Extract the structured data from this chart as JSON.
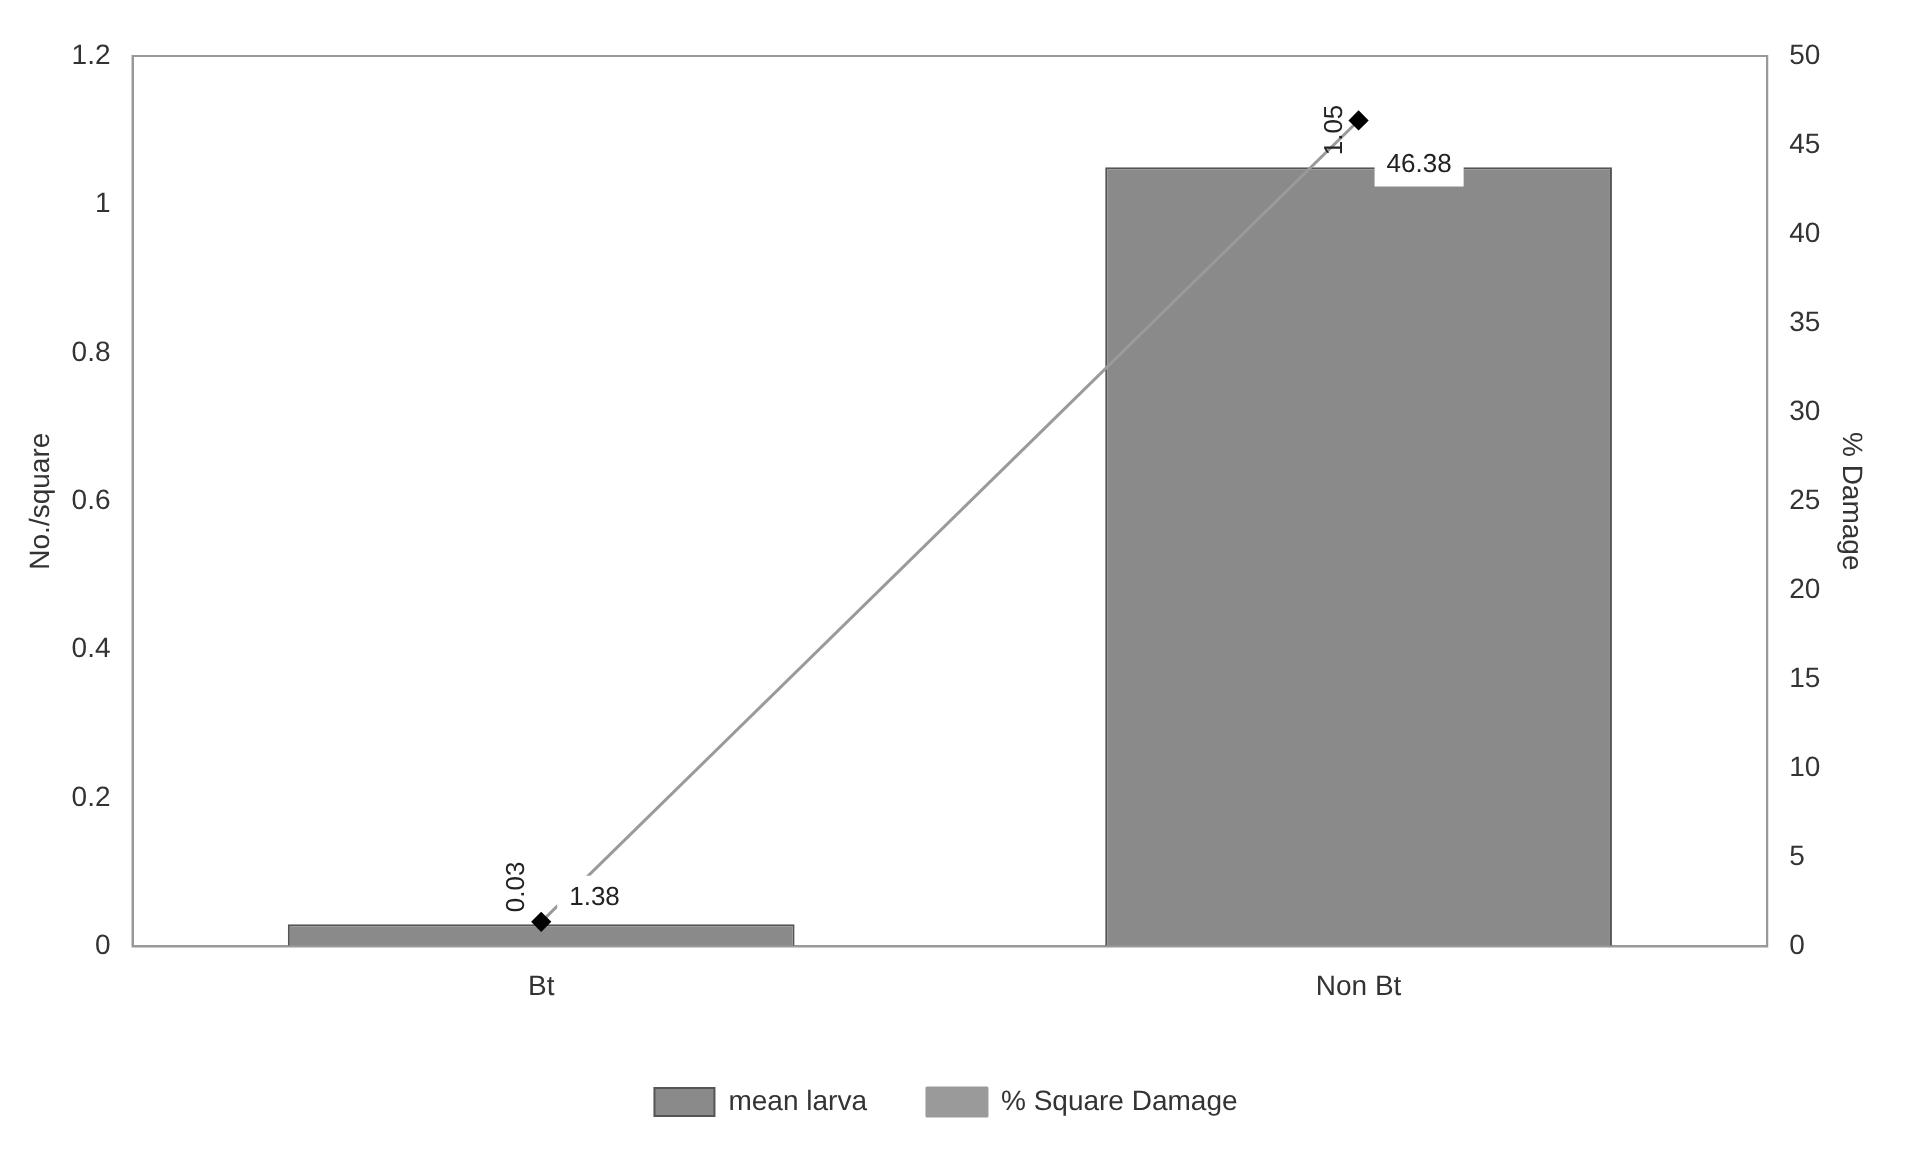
{
  "chart_data": {
    "type": "bar",
    "categories": [
      "Bt",
      "Non Bt"
    ],
    "ylabel": "No./square",
    "y2label": "% Damage",
    "series": [
      {
        "name": "mean larva",
        "color": "#8a8a8a",
        "values": [
          0.03,
          1.05
        ]
      },
      {
        "name": "% Square Damage",
        "type": "line",
        "axis": "y2",
        "color": "#9a9a9a",
        "values": [
          1.38,
          46.38
        ]
      }
    ],
    "ylim": [
      0,
      1.2
    ],
    "yticks": [
      0,
      0.2,
      0.4,
      0.6,
      0.8,
      1,
      1.2
    ],
    "y2lim": [
      0,
      50
    ],
    "y2ticks": [
      0,
      5,
      10,
      15,
      20,
      25,
      30,
      35,
      40,
      45,
      50
    ],
    "data_labels": true,
    "legend": "bottom",
    "grid": false,
    "marker": "diamond",
    "line_style": "solid"
  }
}
